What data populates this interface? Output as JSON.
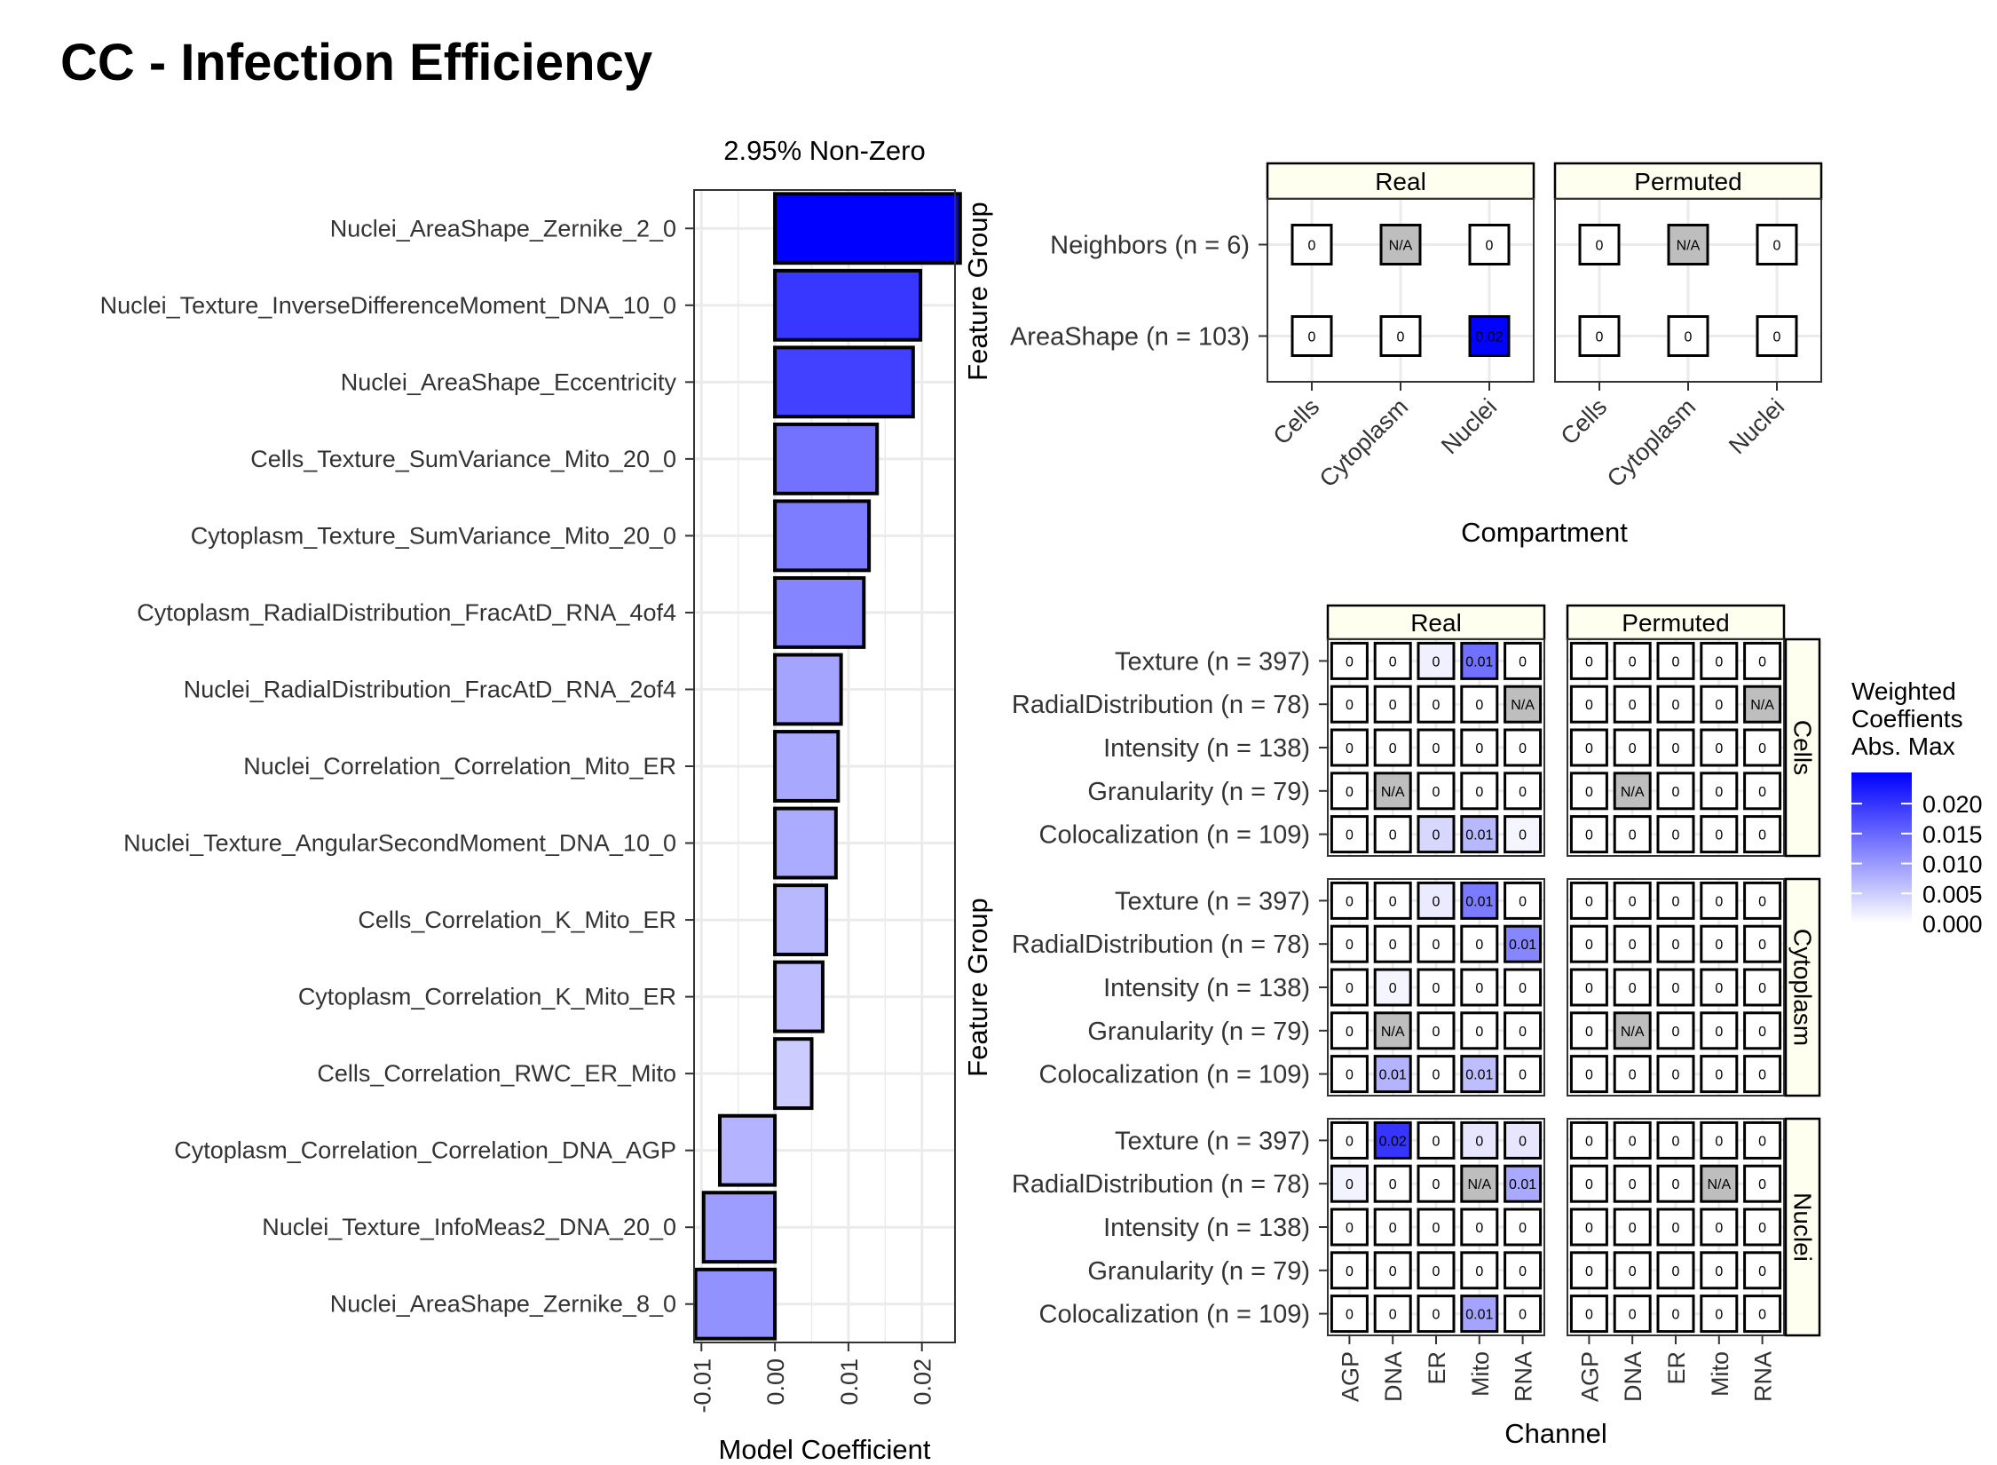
{
  "title": "CC - Infection Efficiency",
  "colors": {
    "max": "#0000ff",
    "min": "#ffffff",
    "na": "#bebebe",
    "strip": "#fffff0",
    "grid": "#ebebeb"
  },
  "chart_data": [
    {
      "type": "bar",
      "orientation": "horizontal",
      "title": "2.95% Non-Zero",
      "xlabel": "Model Coefficient",
      "ylabel": "",
      "xlim": [
        -0.011,
        0.0245
      ],
      "x_ticks": [
        -0.01,
        0.0,
        0.01,
        0.02
      ],
      "x_tick_labels": [
        "-0.01",
        "0.00",
        "0.01",
        "0.02"
      ],
      "categories": [
        "Nuclei_AreaShape_Zernike_2_0",
        "Nuclei_Texture_InverseDifferenceMoment_DNA_10_0",
        "Nuclei_AreaShape_Eccentricity",
        "Cells_Texture_SumVariance_Mito_20_0",
        "Cytoplasm_Texture_SumVariance_Mito_20_0",
        "Cytoplasm_RadialDistribution_FracAtD_RNA_4of4",
        "Nuclei_RadialDistribution_FracAtD_RNA_2of4",
        "Nuclei_Correlation_Correlation_Mito_ER",
        "Nuclei_Texture_AngularSecondMoment_DNA_10_0",
        "Cells_Correlation_K_Mito_ER",
        "Cytoplasm_Correlation_K_Mito_ER",
        "Cells_Correlation_RWC_ER_Mito",
        "Cytoplasm_Correlation_Correlation_DNA_AGP",
        "Nuclei_Texture_InfoMeas2_DNA_20_0",
        "Nuclei_AreaShape_Zernike_8_0"
      ],
      "values": [
        0.0252,
        0.0198,
        0.0188,
        0.0139,
        0.0128,
        0.0121,
        0.009,
        0.0086,
        0.0083,
        0.007,
        0.0065,
        0.005,
        -0.0075,
        -0.0097,
        -0.0108
      ]
    },
    {
      "type": "heatmap",
      "facet_columns": [
        "Real",
        "Permuted"
      ],
      "xlabel": "Compartment",
      "ylabel": "Feature Group",
      "x_categories": [
        "Cells",
        "Cytoplasm",
        "Nuclei"
      ],
      "y_categories": [
        "Neighbors (n = 6)",
        "AreaShape (n = 103)"
      ],
      "cells": {
        "Real": [
          [
            {
              "v": 0,
              "t": "0"
            },
            {
              "v": null,
              "t": "N/A"
            },
            {
              "v": 0,
              "t": "0"
            }
          ],
          [
            {
              "v": 0,
              "t": "0"
            },
            {
              "v": 0,
              "t": "0"
            },
            {
              "v": 0.025,
              "t": "0.02"
            }
          ]
        ],
        "Permuted": [
          [
            {
              "v": 0,
              "t": "0"
            },
            {
              "v": null,
              "t": "N/A"
            },
            {
              "v": 0,
              "t": "0"
            }
          ],
          [
            {
              "v": 0,
              "t": "0"
            },
            {
              "v": 0,
              "t": "0"
            },
            {
              "v": 0,
              "t": "0"
            }
          ]
        ]
      }
    },
    {
      "type": "heatmap",
      "facet_columns": [
        "Real",
        "Permuted"
      ],
      "facet_rows": [
        "Cells",
        "Cytoplasm",
        "Nuclei"
      ],
      "xlabel": "Channel",
      "ylabel": "Feature Group",
      "x_categories": [
        "AGP",
        "DNA",
        "ER",
        "Mito",
        "RNA"
      ],
      "y_categories": [
        "Texture (n = 397)",
        "RadialDistribution (n = 78)",
        "Intensity (n = 138)",
        "Granularity (n = 79)",
        "Colocalization (n = 109)"
      ],
      "cells": {
        "Cells": {
          "Real": [
            [
              {
                "v": 0,
                "t": "0"
              },
              {
                "v": 0,
                "t": "0"
              },
              {
                "v": 0.0015,
                "t": "0"
              },
              {
                "v": 0.014,
                "t": "0.01"
              },
              {
                "v": 0,
                "t": "0"
              }
            ],
            [
              {
                "v": 0,
                "t": "0"
              },
              {
                "v": 0,
                "t": "0"
              },
              {
                "v": 0,
                "t": "0"
              },
              {
                "v": 0,
                "t": "0"
              },
              {
                "v": null,
                "t": "N/A"
              }
            ],
            [
              {
                "v": 0,
                "t": "0"
              },
              {
                "v": 0,
                "t": "0"
              },
              {
                "v": 0,
                "t": "0"
              },
              {
                "v": 0,
                "t": "0"
              },
              {
                "v": 0,
                "t": "0"
              }
            ],
            [
              {
                "v": 0,
                "t": "0"
              },
              {
                "v": null,
                "t": "N/A"
              },
              {
                "v": 0,
                "t": "0"
              },
              {
                "v": 0,
                "t": "0"
              },
              {
                "v": 0,
                "t": "0"
              }
            ],
            [
              {
                "v": 0,
                "t": "0"
              },
              {
                "v": 0,
                "t": "0"
              },
              {
                "v": 0.004,
                "t": "0"
              },
              {
                "v": 0.007,
                "t": "0.01"
              },
              {
                "v": 0.001,
                "t": "0"
              }
            ]
          ],
          "Permuted": [
            [
              {
                "v": 0,
                "t": "0"
              },
              {
                "v": 0,
                "t": "0"
              },
              {
                "v": 0,
                "t": "0"
              },
              {
                "v": 0,
                "t": "0"
              },
              {
                "v": 0,
                "t": "0"
              }
            ],
            [
              {
                "v": 0,
                "t": "0"
              },
              {
                "v": 0,
                "t": "0"
              },
              {
                "v": 0,
                "t": "0"
              },
              {
                "v": 0,
                "t": "0"
              },
              {
                "v": null,
                "t": "N/A"
              }
            ],
            [
              {
                "v": 0,
                "t": "0"
              },
              {
                "v": 0,
                "t": "0"
              },
              {
                "v": 0,
                "t": "0"
              },
              {
                "v": 0,
                "t": "0"
              },
              {
                "v": 0,
                "t": "0"
              }
            ],
            [
              {
                "v": 0,
                "t": "0"
              },
              {
                "v": null,
                "t": "N/A"
              },
              {
                "v": 0,
                "t": "0"
              },
              {
                "v": 0,
                "t": "0"
              },
              {
                "v": 0,
                "t": "0"
              }
            ],
            [
              {
                "v": 0,
                "t": "0"
              },
              {
                "v": 0,
                "t": "0"
              },
              {
                "v": 0,
                "t": "0"
              },
              {
                "v": 0,
                "t": "0"
              },
              {
                "v": 0,
                "t": "0"
              }
            ]
          ]
        },
        "Cytoplasm": {
          "Real": [
            [
              {
                "v": 0,
                "t": "0"
              },
              {
                "v": 0,
                "t": "0"
              },
              {
                "v": 0.002,
                "t": "0"
              },
              {
                "v": 0.013,
                "t": "0.01"
              },
              {
                "v": 0,
                "t": "0"
              }
            ],
            [
              {
                "v": 0,
                "t": "0"
              },
              {
                "v": 0,
                "t": "0"
              },
              {
                "v": 0,
                "t": "0"
              },
              {
                "v": 0,
                "t": "0"
              },
              {
                "v": 0.012,
                "t": "0.01"
              }
            ],
            [
              {
                "v": 0,
                "t": "0"
              },
              {
                "v": 0.001,
                "t": "0"
              },
              {
                "v": 0,
                "t": "0"
              },
              {
                "v": 0,
                "t": "0"
              },
              {
                "v": 0,
                "t": "0"
              }
            ],
            [
              {
                "v": 0,
                "t": "0"
              },
              {
                "v": null,
                "t": "N/A"
              },
              {
                "v": 0,
                "t": "0"
              },
              {
                "v": 0,
                "t": "0"
              },
              {
                "v": 0,
                "t": "0"
              }
            ],
            [
              {
                "v": 0,
                "t": "0"
              },
              {
                "v": 0.0075,
                "t": "0.01"
              },
              {
                "v": 0,
                "t": "0"
              },
              {
                "v": 0.0065,
                "t": "0.01"
              },
              {
                "v": 0,
                "t": "0"
              }
            ]
          ],
          "Permuted": [
            [
              {
                "v": 0,
                "t": "0"
              },
              {
                "v": 0,
                "t": "0"
              },
              {
                "v": 0,
                "t": "0"
              },
              {
                "v": 0,
                "t": "0"
              },
              {
                "v": 0,
                "t": "0"
              }
            ],
            [
              {
                "v": 0,
                "t": "0"
              },
              {
                "v": 0,
                "t": "0"
              },
              {
                "v": 0,
                "t": "0"
              },
              {
                "v": 0,
                "t": "0"
              },
              {
                "v": 0,
                "t": "0"
              }
            ],
            [
              {
                "v": 0,
                "t": "0"
              },
              {
                "v": 0,
                "t": "0"
              },
              {
                "v": 0,
                "t": "0"
              },
              {
                "v": 0,
                "t": "0"
              },
              {
                "v": 0,
                "t": "0"
              }
            ],
            [
              {
                "v": 0,
                "t": "0"
              },
              {
                "v": null,
                "t": "N/A"
              },
              {
                "v": 0,
                "t": "0"
              },
              {
                "v": 0,
                "t": "0"
              },
              {
                "v": 0,
                "t": "0"
              }
            ],
            [
              {
                "v": 0,
                "t": "0"
              },
              {
                "v": 0,
                "t": "0"
              },
              {
                "v": 0,
                "t": "0"
              },
              {
                "v": 0,
                "t": "0"
              },
              {
                "v": 0,
                "t": "0"
              }
            ]
          ]
        },
        "Nuclei": {
          "Real": [
            [
              {
                "v": 0,
                "t": "0"
              },
              {
                "v": 0.02,
                "t": "0.02"
              },
              {
                "v": 0,
                "t": "0"
              },
              {
                "v": 0.0025,
                "t": "0"
              },
              {
                "v": 0.0025,
                "t": "0"
              }
            ],
            [
              {
                "v": 0.0012,
                "t": "0"
              },
              {
                "v": 0,
                "t": "0"
              },
              {
                "v": 0,
                "t": "0"
              },
              {
                "v": null,
                "t": "N/A"
              },
              {
                "v": 0.0085,
                "t": "0.01"
              }
            ],
            [
              {
                "v": 0,
                "t": "0"
              },
              {
                "v": 0,
                "t": "0"
              },
              {
                "v": 0,
                "t": "0"
              },
              {
                "v": 0,
                "t": "0"
              },
              {
                "v": 0,
                "t": "0"
              }
            ],
            [
              {
                "v": 0,
                "t": "0"
              },
              {
                "v": 0,
                "t": "0"
              },
              {
                "v": 0,
                "t": "0"
              },
              {
                "v": 0,
                "t": "0"
              },
              {
                "v": 0,
                "t": "0"
              }
            ],
            [
              {
                "v": 0,
                "t": "0"
              },
              {
                "v": 0,
                "t": "0"
              },
              {
                "v": 0,
                "t": "0"
              },
              {
                "v": 0.009,
                "t": "0.01"
              },
              {
                "v": 0,
                "t": "0"
              }
            ]
          ],
          "Permuted": [
            [
              {
                "v": 0,
                "t": "0"
              },
              {
                "v": 0,
                "t": "0"
              },
              {
                "v": 0,
                "t": "0"
              },
              {
                "v": 0,
                "t": "0"
              },
              {
                "v": 0,
                "t": "0"
              }
            ],
            [
              {
                "v": 0,
                "t": "0"
              },
              {
                "v": 0,
                "t": "0"
              },
              {
                "v": 0,
                "t": "0"
              },
              {
                "v": null,
                "t": "N/A"
              },
              {
                "v": 0,
                "t": "0"
              }
            ],
            [
              {
                "v": 0,
                "t": "0"
              },
              {
                "v": 0,
                "t": "0"
              },
              {
                "v": 0,
                "t": "0"
              },
              {
                "v": 0,
                "t": "0"
              },
              {
                "v": 0,
                "t": "0"
              }
            ],
            [
              {
                "v": 0,
                "t": "0"
              },
              {
                "v": 0,
                "t": "0"
              },
              {
                "v": 0,
                "t": "0"
              },
              {
                "v": 0,
                "t": "0"
              },
              {
                "v": 0,
                "t": "0"
              }
            ],
            [
              {
                "v": 0,
                "t": "0"
              },
              {
                "v": 0,
                "t": "0"
              },
              {
                "v": 0,
                "t": "0"
              },
              {
                "v": 0,
                "t": "0"
              },
              {
                "v": 0,
                "t": "0"
              }
            ]
          ]
        }
      },
      "legend": {
        "title_lines": [
          "Weighted",
          "Coeffients",
          "Abs. Max"
        ],
        "ticks": [
          0.0,
          0.005,
          0.01,
          0.015,
          0.02
        ],
        "tick_labels": [
          "0.000",
          "0.005",
          "0.010",
          "0.015",
          "0.020"
        ],
        "range": [
          0,
          0.0252
        ]
      }
    }
  ]
}
